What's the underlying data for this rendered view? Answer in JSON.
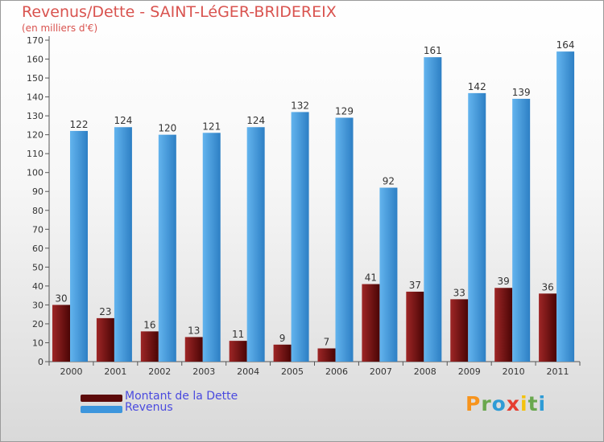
{
  "header": {
    "title": "Revenus/Dette - SAINT-LéGER-BRIDEREIX",
    "subtitle": "(en milliers d'€)"
  },
  "chart_data": {
    "type": "bar",
    "categories": [
      "2000",
      "2001",
      "2002",
      "2003",
      "2004",
      "2005",
      "2006",
      "2007",
      "2008",
      "2009",
      "2010",
      "2011"
    ],
    "series": [
      {
        "name": "Montant de la Dette",
        "values": [
          30,
          23,
          16,
          13,
          11,
          9,
          7,
          41,
          37,
          33,
          39,
          36
        ],
        "color": "#8b1a1a"
      },
      {
        "name": "Revenus",
        "values": [
          122,
          124,
          120,
          121,
          124,
          132,
          129,
          92,
          161,
          142,
          139,
          164
        ],
        "color": "#4aa3e6"
      }
    ],
    "ylim": [
      0,
      170
    ],
    "yticks": [
      0,
      10,
      20,
      30,
      40,
      50,
      60,
      70,
      80,
      90,
      100,
      110,
      120,
      130,
      140,
      150,
      160,
      170
    ],
    "grid": false,
    "legend_position": "bottom-left"
  },
  "legend": {
    "items": [
      {
        "label": "Montant de la Dette",
        "color": "#5c0a0a"
      },
      {
        "label": "Revenus",
        "color": "#3d96dd"
      }
    ]
  },
  "brand": {
    "letters": [
      "P",
      "r",
      "o",
      "x",
      "i",
      "t",
      "i"
    ],
    "colors": [
      "#f7941d",
      "#6aa84f",
      "#2f9cd6",
      "#e63e31",
      "#f4c20d",
      "#6aa84f",
      "#2f9cd6"
    ]
  }
}
